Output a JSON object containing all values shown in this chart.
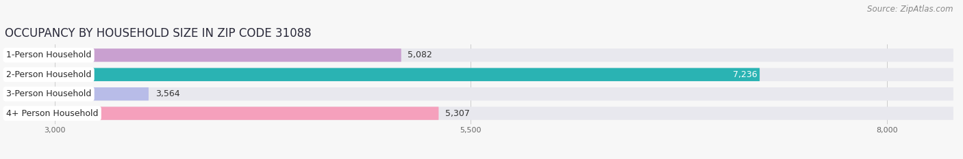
{
  "title": "OCCUPANCY BY HOUSEHOLD SIZE IN ZIP CODE 31088",
  "source": "Source: ZipAtlas.com",
  "categories": [
    "1-Person Household",
    "2-Person Household",
    "3-Person Household",
    "4+ Person Household"
  ],
  "values": [
    5082,
    7236,
    3564,
    5307
  ],
  "bar_colors": [
    "#c9a0d0",
    "#2ab3b3",
    "#b8bce8",
    "#f5a0bc"
  ],
  "bar_bg_color": "#e8e8ee",
  "xlim_min": 2700,
  "xlim_max": 8400,
  "xticks": [
    3000,
    5500,
    8000
  ],
  "title_fontsize": 12,
  "source_fontsize": 8.5,
  "label_fontsize": 9,
  "value_fontsize": 9,
  "bar_height": 0.68,
  "figsize": [
    14.06,
    2.33
  ],
  "dpi": 100,
  "background_color": "#f7f7f7",
  "grid_color": "#cccccc",
  "label_bg": "#ffffff"
}
